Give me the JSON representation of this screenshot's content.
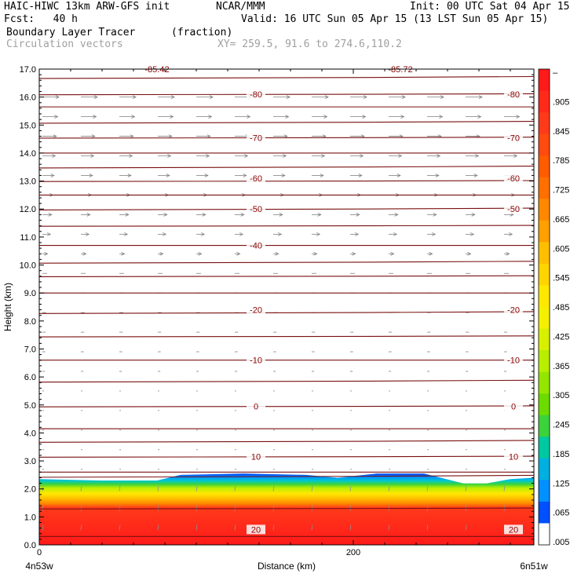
{
  "header": {
    "model": "HAIC-HIWC 13km ARW-GFS init",
    "org": "NCAR/MMM",
    "init": "Init: 00 UTC Sat 04 Apr 15",
    "fcst": "Fcst:   40 h",
    "valid": "Valid: 16 UTC Sun 05 Apr 15 (13 LST Sun 05 Apr 15)",
    "field": "Boundary Layer Tracer",
    "field_units": "(fraction)",
    "vectors": "Circulation vectors",
    "xy": "XY= 259.5, 91.6 to 274.6,110.2"
  },
  "chart_data": {
    "type": "heatmap",
    "xlabel": "Distance (km)",
    "ylabel": "Height (km)",
    "x_endpoints": [
      "4n53w",
      "6n51w"
    ],
    "x_ticks": [
      "0",
      "200"
    ],
    "y_ticks": [
      "0.0",
      "1.0",
      "2.0",
      "3.0",
      "4.0",
      "5.0",
      "6.0",
      "7.0",
      "8.0",
      "9.0",
      "10.0",
      "11.0",
      "12.0",
      "13.0",
      "14.0",
      "15.0",
      "16.0",
      "17.0"
    ],
    "xlim": [
      0,
      315
    ],
    "ylim": [
      0,
      17
    ],
    "colorbar": {
      "labels": [
        "–",
        ".905",
        ".845",
        ".785",
        ".725",
        ".665",
        ".605",
        ".545",
        ".485",
        ".425",
        ".365",
        ".305",
        ".245",
        ".185",
        ".125",
        ".065",
        ".005"
      ],
      "colors": [
        "#ff1a1a",
        "#ff2a1a",
        "#ff3a1a",
        "#ff4a10",
        "#ff5c00",
        "#ff7000",
        "#ff8800",
        "#ffa000",
        "#ffbf00",
        "#ffd400",
        "#ffe800",
        "#f4f000",
        "#d8f000",
        "#b8ee00",
        "#94e600",
        "#6cdc00",
        "#3cd23c",
        "#00c8a0",
        "#00b0e0",
        "#0090ff",
        "#0050ff",
        "#ffffff"
      ]
    },
    "tracer_top_km": [
      [
        0,
        2.35
      ],
      [
        40,
        2.3
      ],
      [
        75,
        2.3
      ],
      [
        90,
        2.5
      ],
      [
        130,
        2.55
      ],
      [
        170,
        2.5
      ],
      [
        190,
        2.4
      ],
      [
        215,
        2.55
      ],
      [
        245,
        2.55
      ],
      [
        270,
        2.2
      ],
      [
        285,
        2.2
      ],
      [
        300,
        2.35
      ],
      [
        315,
        2.4
      ]
    ],
    "contour_lines_km": [
      0.3,
      1.3,
      2.45,
      2.6,
      3.15,
      3.7,
      4.15,
      4.95,
      5.85,
      6.6,
      7.45,
      8.3,
      9.0,
      9.6,
      10.1,
      10.7,
      11.4,
      12.0,
      12.5,
      13.0,
      13.5,
      14.0,
      14.55,
      15.1,
      15.65,
      16.1,
      16.7
    ],
    "contour_labels": [
      {
        "text": "20",
        "x": 138,
        "y": 0.55
      },
      {
        "text": "20",
        "x": 302,
        "y": 0.55
      },
      {
        "text": "10",
        "x": 138,
        "y": 3.15
      },
      {
        "text": "10",
        "x": 302,
        "y": 3.15
      },
      {
        "text": "0",
        "x": 138,
        "y": 4.95
      },
      {
        "text": "0",
        "x": 302,
        "y": 4.95
      },
      {
        "text": "-10",
        "x": 138,
        "y": 6.6
      },
      {
        "text": "-10",
        "x": 302,
        "y": 6.6
      },
      {
        "text": "-20",
        "x": 138,
        "y": 8.4
      },
      {
        "text": "-20",
        "x": 302,
        "y": 8.4
      },
      {
        "text": "-40",
        "x": 138,
        "y": 10.7
      },
      {
        "text": "-50",
        "x": 138,
        "y": 12.0
      },
      {
        "text": "-50",
        "x": 302,
        "y": 12.0
      },
      {
        "text": "-60",
        "x": 138,
        "y": 13.1
      },
      {
        "text": "-60",
        "x": 302,
        "y": 13.1
      },
      {
        "text": "-70",
        "x": 138,
        "y": 14.55
      },
      {
        "text": "-70",
        "x": 302,
        "y": 14.55
      },
      {
        "text": "-80",
        "x": 138,
        "y": 16.1
      },
      {
        "text": "-80",
        "x": 302,
        "y": 16.1
      },
      {
        "text": "-85.42",
        "x": 75,
        "y": 17.0
      },
      {
        "text": "-85.72",
        "x": 230,
        "y": 17.0
      }
    ]
  }
}
